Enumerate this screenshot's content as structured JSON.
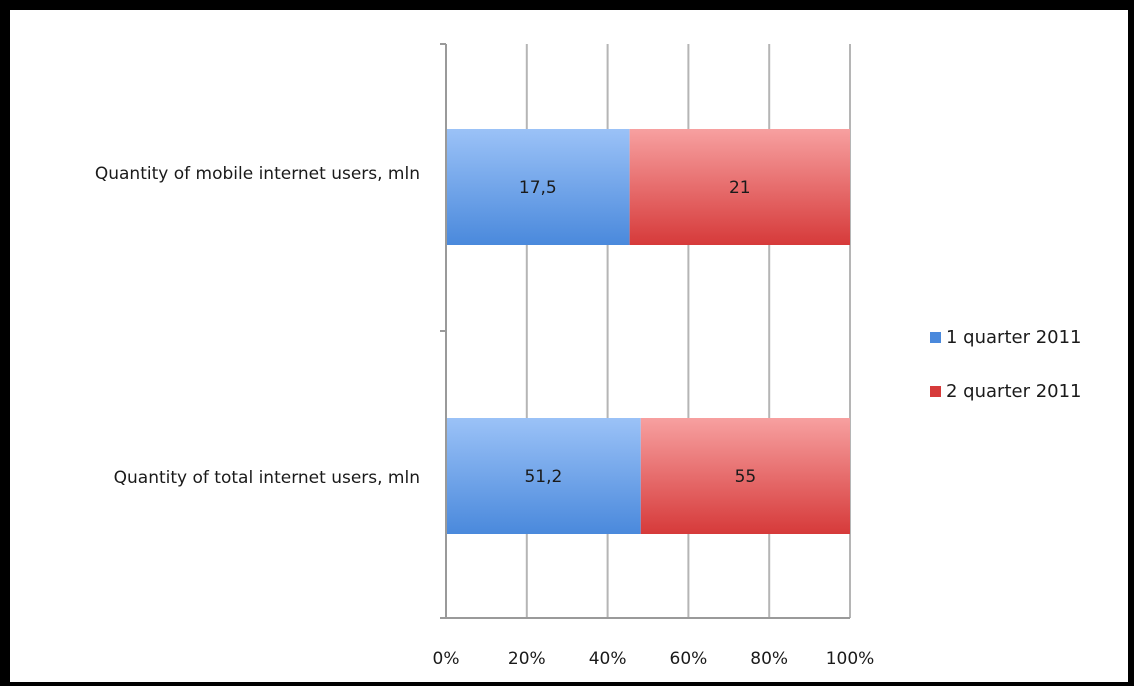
{
  "chart_data": {
    "type": "bar",
    "orientation": "horizontal",
    "stacking": "percent",
    "categories": [
      "Quantity of mobile internet users, mln",
      "Quantity of total internet users, mln"
    ],
    "series": [
      {
        "name": "1 quarter 2011",
        "values": [
          17.5,
          51.2
        ],
        "labels": [
          "17,5",
          "51,2"
        ],
        "color": "#4a89dc",
        "color_light": "#9bc2f7"
      },
      {
        "name": "2 quarter 2011",
        "values": [
          21,
          55
        ],
        "labels": [
          "21",
          "55"
        ],
        "color": "#d63a3a",
        "color_light": "#f7a0a0"
      }
    ],
    "xlim": [
      0,
      100
    ],
    "x_ticks": [
      "0%",
      "20%",
      "40%",
      "60%",
      "80%",
      "100%"
    ],
    "grid": true,
    "legend_position": "right",
    "title": "",
    "xlabel": "",
    "ylabel": ""
  }
}
